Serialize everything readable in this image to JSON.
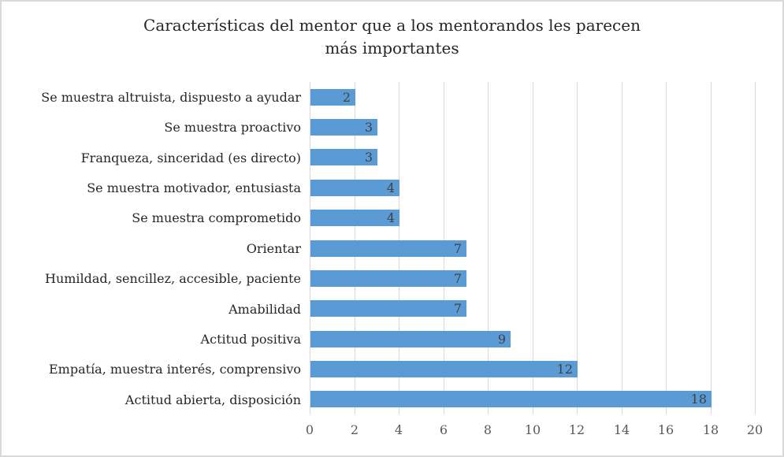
{
  "chart": {
    "title_line1": "Características del mentor que a los mentorandos les parecen",
    "title_line2": "más importantes"
  },
  "chart_data": {
    "type": "bar",
    "orientation": "horizontal",
    "title": "Características del mentor que a los mentorandos les parecen más importantes",
    "categories": [
      "Se muestra altruista, dispuesto a ayudar",
      "Se muestra proactivo",
      "Franqueza, sinceridad (es directo)",
      "Se muestra motivador, entusiasta",
      "Se muestra comprometido",
      "Orientar",
      "Humildad, sencillez, accesible, paciente",
      "Amabilidad",
      "Actitud positiva",
      "Empatía, muestra interés, comprensivo",
      "Actitud abierta, disposición"
    ],
    "values": [
      2,
      3,
      3,
      4,
      4,
      7,
      7,
      7,
      9,
      12,
      18
    ],
    "xlim": [
      0,
      20
    ],
    "x_ticks": [
      0,
      2,
      4,
      6,
      8,
      10,
      12,
      14,
      16,
      18,
      20
    ],
    "grid": true,
    "legend": false,
    "value_label_position": "inside-end",
    "colors": {
      "bar": "#5B9BD5",
      "gridline": "#D9D9D9",
      "title_text": "#262626",
      "category_text": "#262626",
      "value_text": "#404040",
      "tick_text": "#595959",
      "frame_border": "#D9D9D9",
      "background": "#FFFFFF"
    }
  }
}
